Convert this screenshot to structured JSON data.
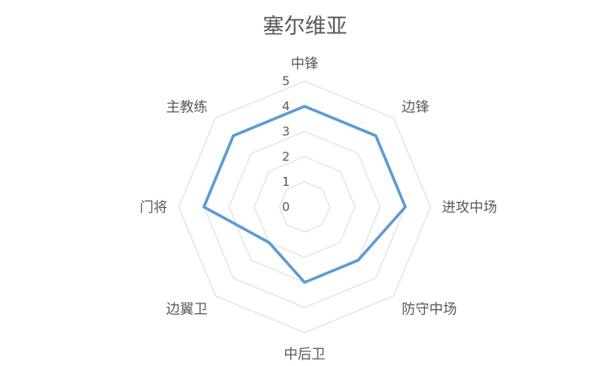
{
  "chart_data": {
    "type": "radar",
    "title": "塞尔维亚",
    "categories": [
      "中锋",
      "边锋",
      "进攻中场",
      "防守中场",
      "中后卫",
      "边翼卫",
      "门将",
      "主教练"
    ],
    "series": [
      {
        "values": [
          4,
          4,
          4,
          3,
          3,
          2,
          4,
          4
        ]
      }
    ],
    "rlim": [
      0,
      5
    ],
    "r_ticks": [
      "0",
      "1",
      "2",
      "3",
      "4",
      "5"
    ],
    "grid": true,
    "legend": "none",
    "colors": {
      "series": "#5B9BD5",
      "grid": "#D9D9D9",
      "text": "#595959"
    }
  }
}
